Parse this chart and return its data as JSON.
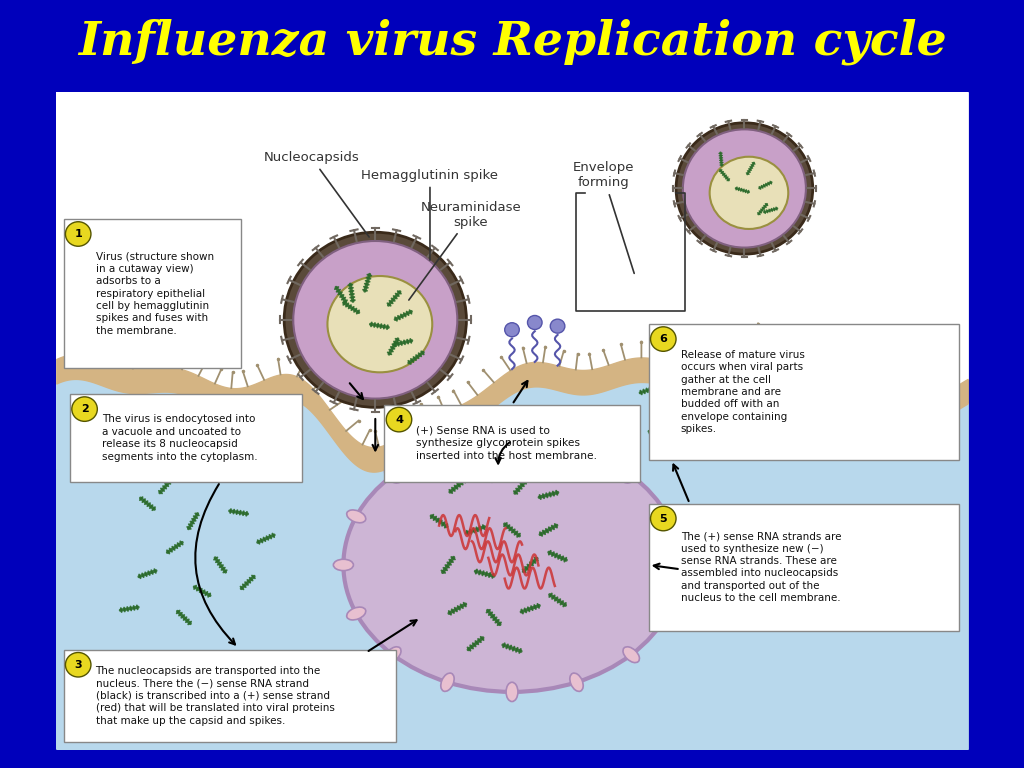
{
  "title": "Influenza virus Replication cycle",
  "title_color": "#FFFF00",
  "title_bg": "#0000BB",
  "title_fontsize": 34,
  "content_bg": "#FFFFFF",
  "outer_bg": "#0000BB",
  "step1_text": "Virus (structure shown\nin a cutaway view)\nadsorbs to a\nrespiratory epithelial\ncell by hemagglutinin\nspikes and fuses with\nthe membrane.",
  "step2_text": "The virus is endocytosed into\na vacuole and uncoated to\nrelease its 8 nucleocapsid\nsegments into the cytoplasm.",
  "step3_text": "The nucleocapsids are transported into the\nnucleus. There the (−) sense RNA strand\n(black) is transcribed into a (+) sense strand\n(red) that will be translated into viral proteins\nthat make up the capsid and spikes.",
  "step4_text": "(+) Sense RNA is used to\nsynthesize glycoprotein spikes\ninserted into the host membrane.",
  "step5_text": "The (+) sense RNA strands are\nused to synthesize new (−)\nsense RNA strands. These are\nassembled into nucleocapsids\nand transported out of the\nnucleus to the cell membrane.",
  "step6_text": "Release of mature virus\noccurs when viral parts\ngather at the cell\nmembrane and are\nbudded off with an\nenvelope containing\nspikes.",
  "label_nucleocapsids": "Nucleocapsids",
  "label_hema": "Hemagglutinin spike",
  "label_neura": "Neuraminidase\nspike",
  "label_envelope": "Envelope\nforming",
  "cell_body_color": "#B8D8EC",
  "membrane_tan": "#D4B483",
  "membrane_tan2": "#C8A870",
  "nucleus_fill": "#CDB5D5",
  "nucleus_border": "#A888B8",
  "nucleus_pore_color": "#E8C8D8",
  "virus_outer_fill": "#C8A0C8",
  "virus_outer_border": "#806080",
  "virus_inner_fill": "#E8E0B8",
  "virus_inner_border": "#9A9040",
  "nucleocapsid_color": "#2A6A2A",
  "spike_color": "#706860",
  "spike_tip_color": "#706860",
  "membrane_spike_color": "#A09070",
  "red_strand_color": "#CC3333",
  "step_circle_color": "#E8D820",
  "box_bg": "#FFFFFF",
  "box_border": "#888888",
  "text_color": "#111111",
  "label_color": "#333333",
  "annotation_fs": 8.5,
  "label_fs": 9.5,
  "outer_border_lw": 18
}
